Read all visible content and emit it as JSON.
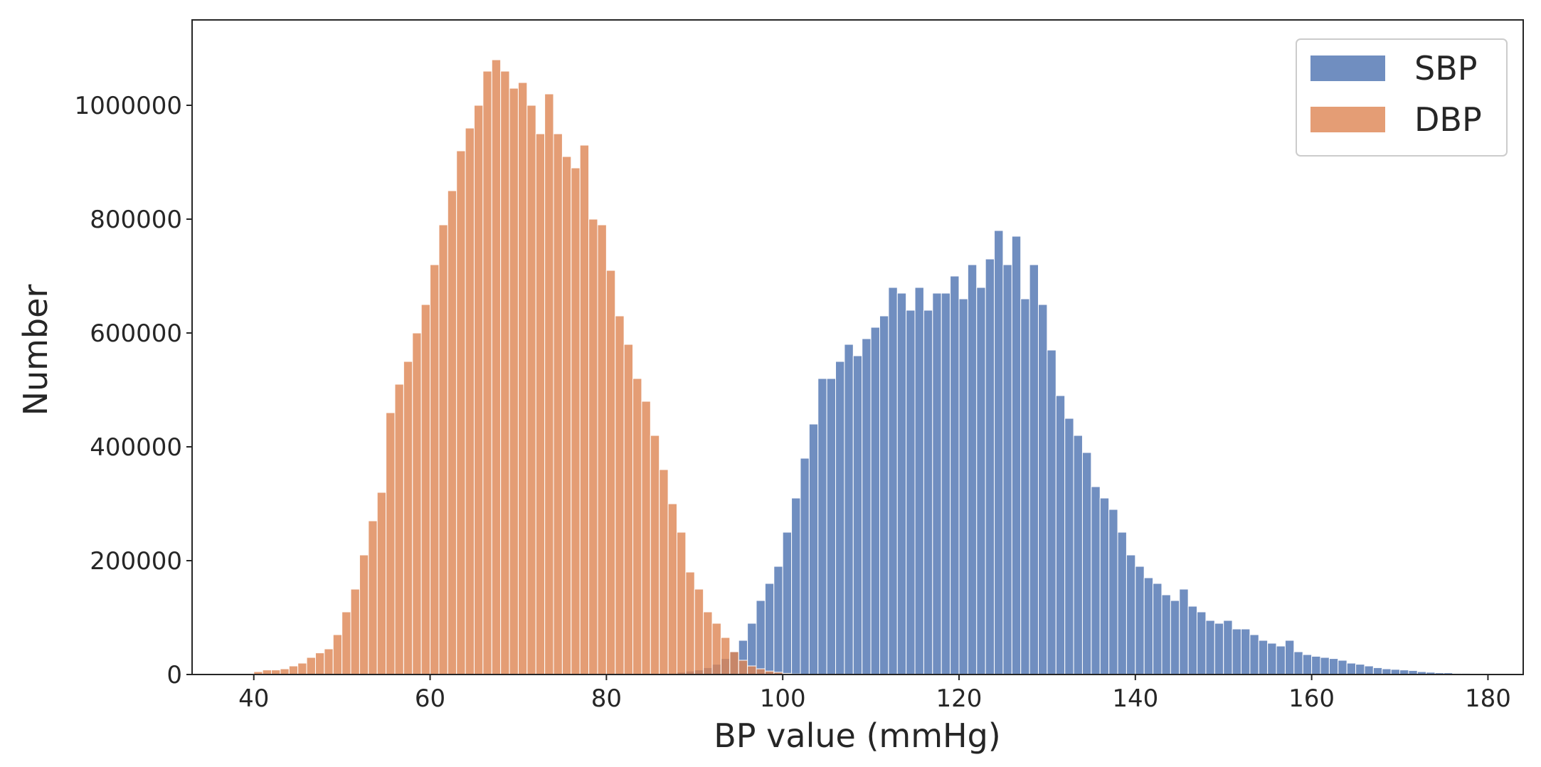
{
  "chart_data": {
    "type": "bar",
    "title": "",
    "xlabel": "BP value (mmHg)",
    "ylabel": "Number",
    "xlim": [
      33,
      184
    ],
    "ylim": [
      0,
      1150000
    ],
    "xticks": [
      40,
      60,
      80,
      100,
      120,
      140,
      160,
      180
    ],
    "yticks": [
      0,
      200000,
      400000,
      600000,
      800000,
      1000000
    ],
    "grid": false,
    "legend_position": "top-right",
    "colors": {
      "SBP": "#4c72b0",
      "DBP": "#dd8452",
      "edge": "#ffffff",
      "frame": "#262626"
    },
    "series": [
      {
        "name": "SBP",
        "bin_start": 60,
        "bin_width": 1,
        "values": [
          0,
          0,
          0,
          0,
          0,
          0,
          0,
          0,
          0,
          0,
          0,
          0,
          0,
          0,
          0,
          0,
          0,
          0,
          0,
          0,
          0,
          0,
          0,
          0,
          0,
          0,
          0,
          2000,
          4000,
          6000,
          8000,
          12000,
          18000,
          28000,
          40000,
          60000,
          90000,
          130000,
          160000,
          190000,
          250000,
          310000,
          380000,
          440000,
          520000,
          520000,
          550000,
          580000,
          560000,
          590000,
          610000,
          630000,
          680000,
          670000,
          640000,
          680000,
          640000,
          670000,
          670000,
          700000,
          660000,
          720000,
          680000,
          730000,
          780000,
          720000,
          770000,
          660000,
          720000,
          650000,
          570000,
          490000,
          450000,
          420000,
          390000,
          330000,
          310000,
          290000,
          250000,
          210000,
          190000,
          170000,
          160000,
          140000,
          130000,
          150000,
          120000,
          110000,
          95000,
          90000,
          95000,
          80000,
          80000,
          70000,
          60000,
          55000,
          50000,
          60000,
          40000,
          35000,
          32000,
          30000,
          28000,
          25000,
          20000,
          18000,
          15000,
          12000,
          10000,
          9000,
          8000,
          7000,
          5000,
          4000,
          3000,
          3000,
          2000,
          2000,
          1000,
          1000,
          1000
        ]
      },
      {
        "name": "DBP",
        "bin_start": 40,
        "bin_width": 1,
        "values": [
          5000,
          8000,
          8000,
          10000,
          15000,
          20000,
          30000,
          38000,
          45000,
          70000,
          110000,
          150000,
          210000,
          270000,
          320000,
          460000,
          510000,
          550000,
          600000,
          650000,
          720000,
          790000,
          850000,
          920000,
          960000,
          1000000,
          1060000,
          1080000,
          1060000,
          1030000,
          1040000,
          1000000,
          950000,
          1020000,
          950000,
          910000,
          890000,
          930000,
          800000,
          790000,
          710000,
          630000,
          580000,
          520000,
          480000,
          420000,
          360000,
          300000,
          250000,
          180000,
          150000,
          110000,
          90000,
          65000,
          40000,
          25000,
          15000,
          10000,
          6000,
          4000,
          2000,
          1000,
          500,
          0,
          0,
          0,
          0,
          0,
          0,
          0
        ]
      }
    ]
  }
}
